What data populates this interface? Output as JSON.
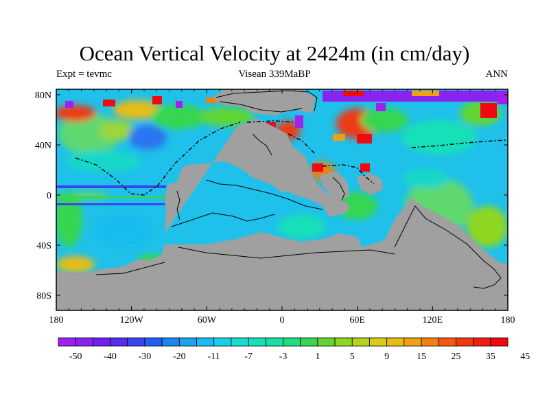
{
  "title": "Ocean Vertical Velocity at 2424m (in cm/day)",
  "subtitle_left": "Expt = tevmc",
  "subtitle_center": "Visean 339MaBP",
  "subtitle_right": "ANN",
  "map": {
    "projection": "cylindrical equidistant",
    "lon_range": [
      -180,
      180
    ],
    "lat_range": [
      -90,
      90
    ],
    "land_color": "#a0a0a0",
    "x_tick_labels": [
      "180",
      "120W",
      "60W",
      "0",
      "60E",
      "120E",
      "180"
    ],
    "y_tick_labels": [
      "80N",
      "40N",
      "0",
      "40S",
      "80S"
    ]
  },
  "colorbar": {
    "labels": [
      "-50",
      "-40",
      "-30",
      "-20",
      "-11",
      "-7",
      "-3",
      "1",
      "5",
      "9",
      "15",
      "25",
      "35",
      "45"
    ],
    "colors": [
      "#a020f0",
      "#8a22f0",
      "#7020f0",
      "#5a2cf0",
      "#3a44f0",
      "#1f60f0",
      "#1a86f0",
      "#19a4f0",
      "#19bcf0",
      "#1ad0e8",
      "#19ddd0",
      "#19e0b8",
      "#19dfa0",
      "#22dd80",
      "#36d650",
      "#60d630",
      "#8fd622",
      "#b8d21c",
      "#d8cc18",
      "#e8bc14",
      "#f0a010",
      "#f28010",
      "#f25a10",
      "#f03a10",
      "#f01e10",
      "#ee0a10"
    ]
  }
}
